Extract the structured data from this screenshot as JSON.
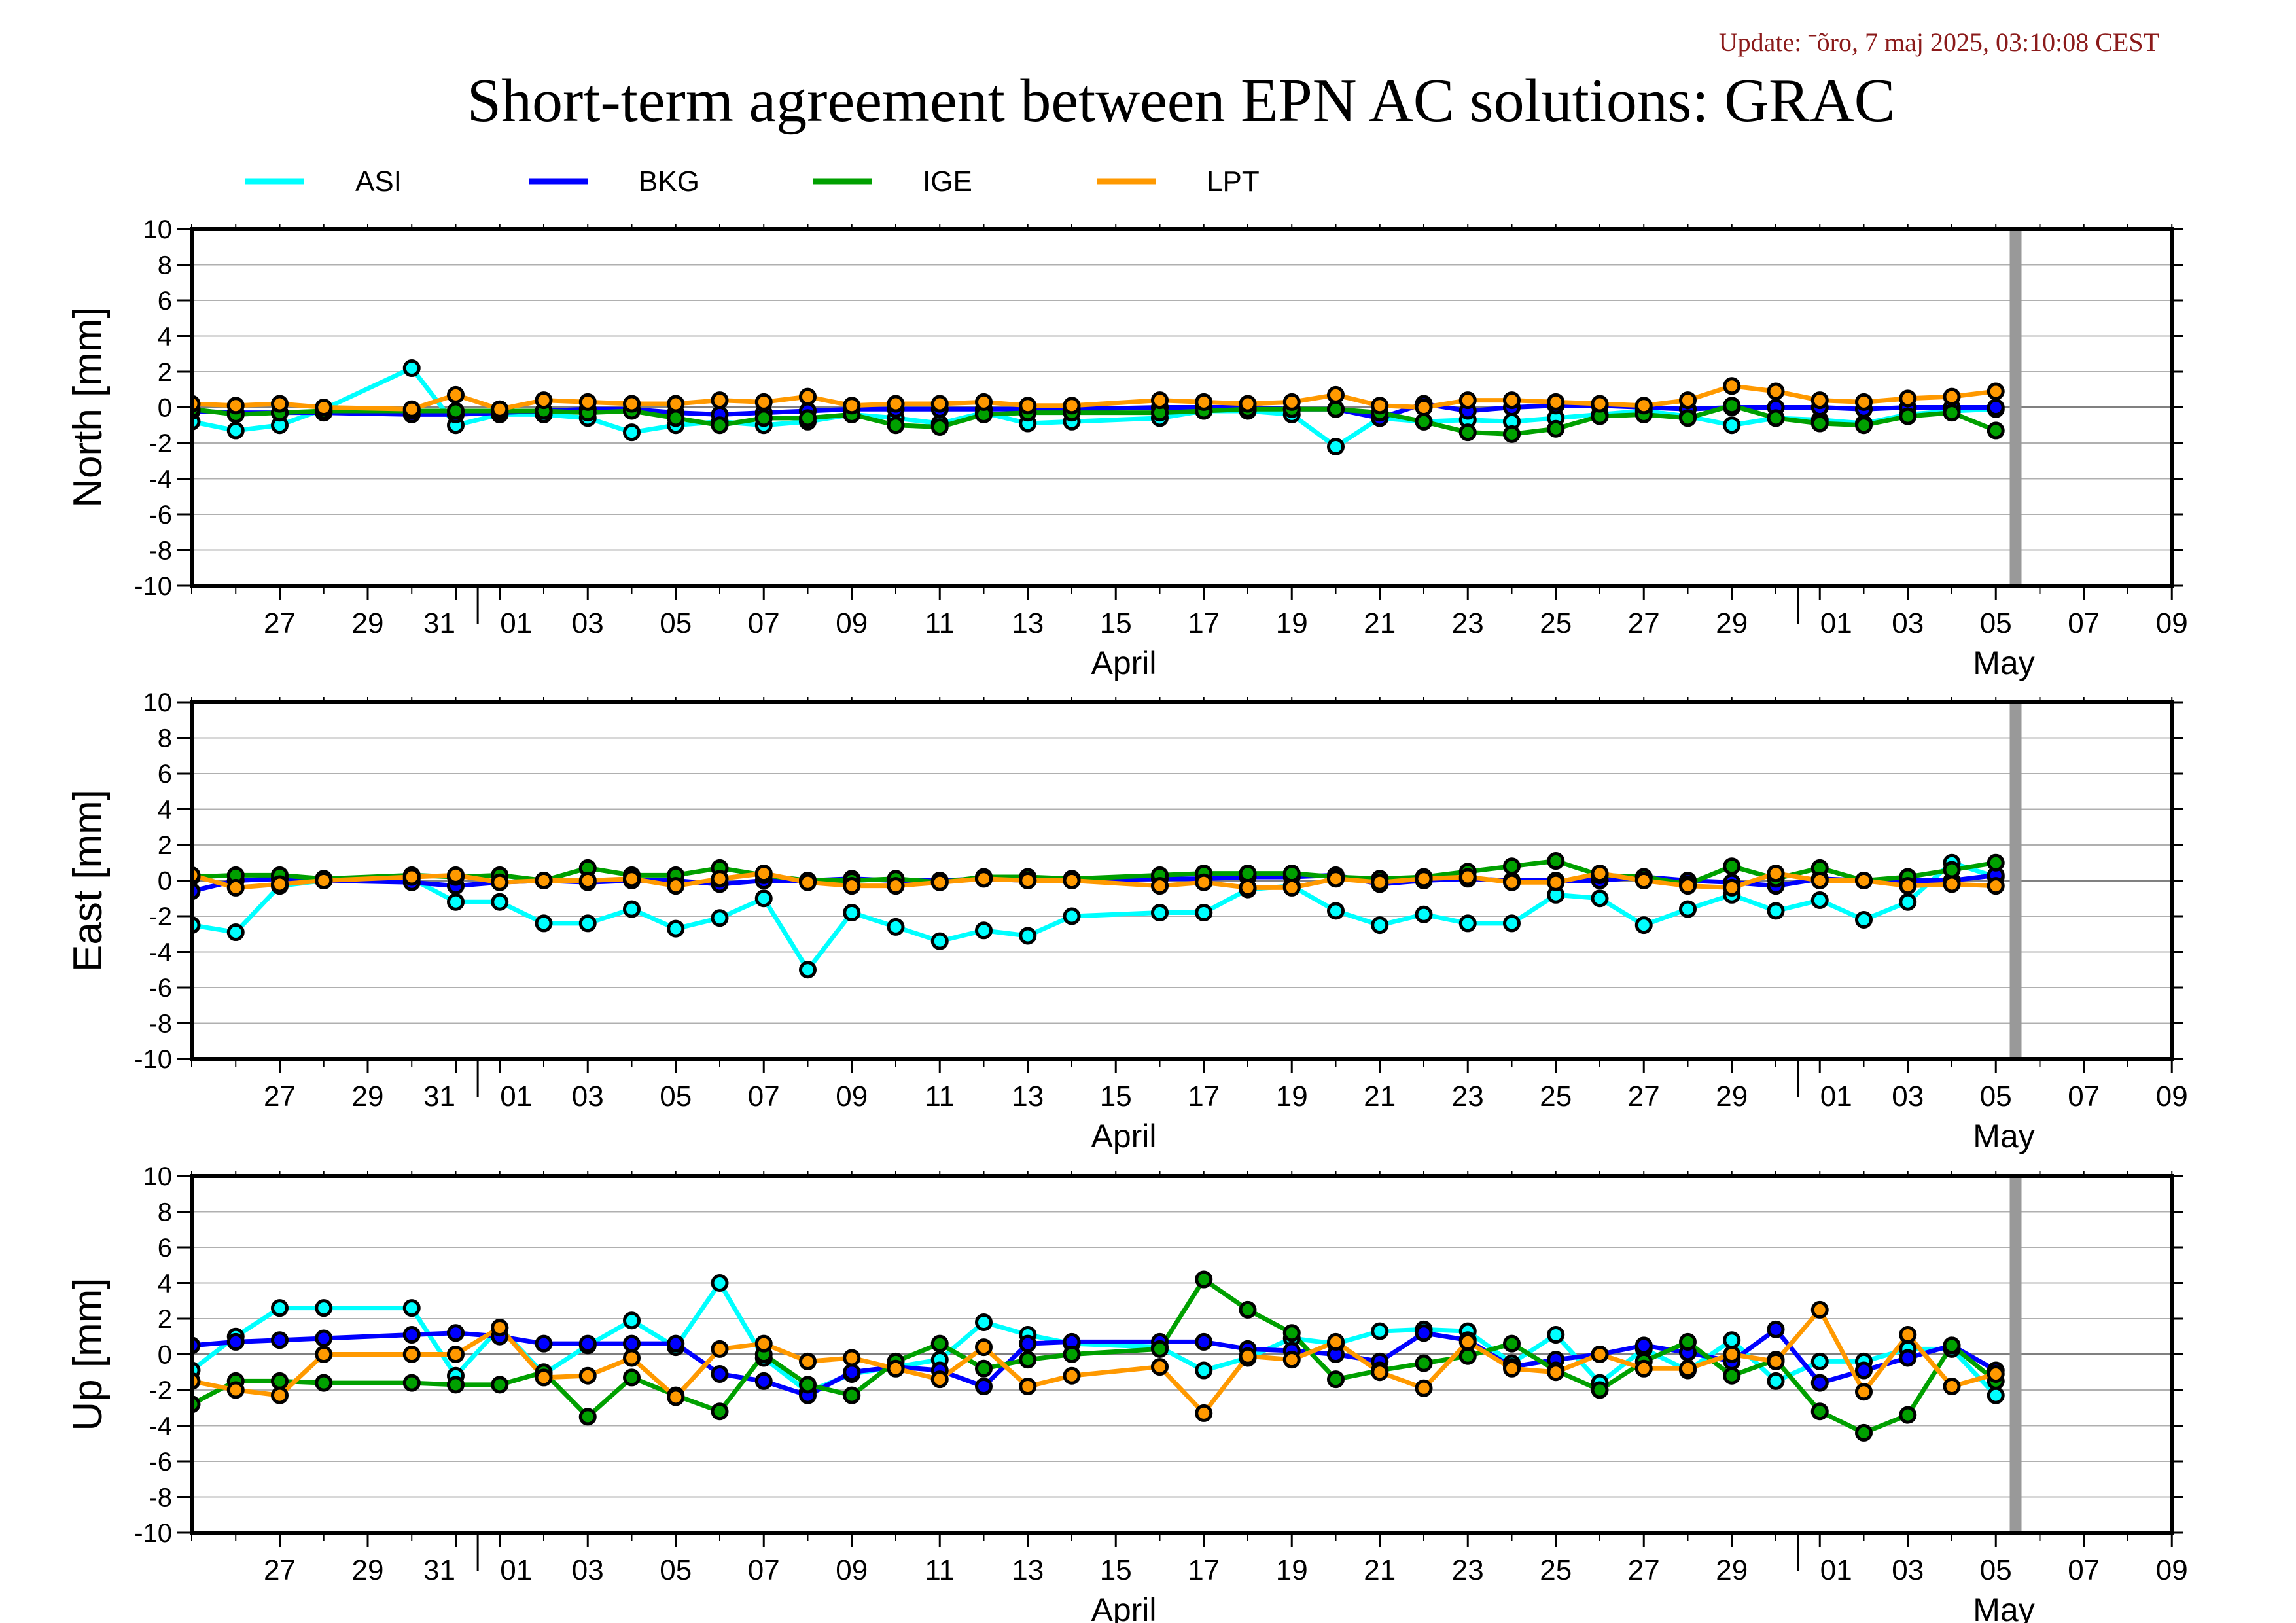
{
  "update_text": "Update: ˉõro, 7 maj 2025, 03:10:08 CEST",
  "title": "Short-term agreement between EPN AC solutions: GRAC",
  "legend": [
    {
      "name": "ASI",
      "color": "#00ffff"
    },
    {
      "name": "BKG",
      "color": "#0000ff"
    },
    {
      "name": "IGE",
      "color": "#00a000"
    },
    {
      "name": "LPT",
      "color": "#ff9900"
    }
  ],
  "colors": {
    "vline": "#999999",
    "grid": "#b0b0b0",
    "marker_edge": "#000000"
  },
  "chart_data": {
    "type": "line",
    "x_unit": "day (2025)",
    "x_range": [
      "2025-03-25",
      "2025-05-10"
    ],
    "x_ticks": [
      "27",
      "29",
      "31",
      "01",
      "03",
      "05",
      "07",
      "09",
      "11",
      "13",
      "15",
      "17",
      "19",
      "21",
      "23",
      "25",
      "27",
      "29",
      "01",
      "03",
      "05",
      "07",
      "09"
    ],
    "month_labels": [
      "April",
      "May"
    ],
    "vertical_line": "2025-05-05",
    "x_dates": [
      "2025-03-25",
      "2025-03-26",
      "2025-03-27",
      "2025-03-28",
      "2025-03-30",
      "2025-03-31",
      "2025-04-01",
      "2025-04-02",
      "2025-04-03",
      "2025-04-04",
      "2025-04-05",
      "2025-04-06",
      "2025-04-07",
      "2025-04-08",
      "2025-04-09",
      "2025-04-10",
      "2025-04-11",
      "2025-04-12",
      "2025-04-13",
      "2025-04-14",
      "2025-04-16",
      "2025-04-17",
      "2025-04-18",
      "2025-04-19",
      "2025-04-20",
      "2025-04-21",
      "2025-04-22",
      "2025-04-23",
      "2025-04-24",
      "2025-04-25",
      "2025-04-26",
      "2025-04-27",
      "2025-04-28",
      "2025-04-29",
      "2025-04-30",
      "2025-05-01",
      "2025-05-02",
      "2025-05-03",
      "2025-05-04",
      "2025-05-05"
    ],
    "panels": [
      {
        "ylabel": "North [mm]",
        "ylim": [
          -10,
          10
        ],
        "y_ticks": [
          "10",
          "8",
          "6",
          "4",
          "2",
          "0",
          "-2",
          "-4",
          "-6",
          "-8",
          "-10"
        ],
        "series": [
          {
            "name": "ASI",
            "values": [
              -0.8,
              -1.3,
              -1.0,
              -0.1,
              2.2,
              -1.0,
              -0.4,
              -0.4,
              -0.6,
              -1.4,
              -1.0,
              -0.8,
              -1.0,
              -0.8,
              -0.4,
              -0.6,
              -0.9,
              -0.3,
              -0.9,
              -0.8,
              -0.6,
              -0.2,
              -0.2,
              -0.4,
              -2.2,
              -0.6,
              -0.8,
              -0.7,
              -0.8,
              -0.6,
              -0.4,
              -0.2,
              -0.5,
              -1.0,
              -0.6,
              -0.7,
              -0.9,
              -0.4,
              -0.2,
              -0.1
            ]
          },
          {
            "name": "BKG",
            "values": [
              -0.2,
              -0.3,
              -0.3,
              -0.3,
              -0.4,
              -0.4,
              -0.3,
              -0.2,
              -0.1,
              -0.1,
              -0.3,
              -0.4,
              -0.3,
              -0.2,
              -0.1,
              -0.1,
              -0.1,
              -0.1,
              -0.1,
              -0.1,
              0.0,
              0.0,
              0.0,
              -0.1,
              -0.1,
              -0.6,
              0.2,
              -0.2,
              0.0,
              0.1,
              0.1,
              0.0,
              -0.1,
              0.0,
              0.0,
              0.0,
              -0.1,
              0.0,
              0.0,
              0.0
            ]
          },
          {
            "name": "IGE",
            "values": [
              -0.1,
              -0.4,
              -0.3,
              -0.2,
              -0.2,
              -0.2,
              -0.2,
              -0.2,
              -0.3,
              -0.2,
              -0.6,
              -1.0,
              -0.6,
              -0.6,
              -0.4,
              -1.0,
              -1.1,
              -0.4,
              -0.3,
              -0.3,
              -0.3,
              -0.2,
              -0.1,
              -0.1,
              -0.1,
              -0.3,
              -0.8,
              -1.4,
              -1.5,
              -1.2,
              -0.5,
              -0.4,
              -0.6,
              0.1,
              -0.6,
              -0.9,
              -1.0,
              -0.5,
              -0.3,
              -1.3
            ]
          },
          {
            "name": "LPT",
            "values": [
              0.2,
              0.1,
              0.2,
              0.0,
              -0.1,
              0.7,
              -0.1,
              0.4,
              0.3,
              0.2,
              0.2,
              0.4,
              0.3,
              0.6,
              0.1,
              0.2,
              0.2,
              0.3,
              0.1,
              0.1,
              0.4,
              0.3,
              0.2,
              0.3,
              0.7,
              0.1,
              0.0,
              0.4,
              0.4,
              0.3,
              0.2,
              0.1,
              0.4,
              1.2,
              0.9,
              0.4,
              0.3,
              0.5,
              0.6,
              0.9
            ]
          }
        ]
      },
      {
        "ylabel": "East [mm]",
        "ylim": [
          -10,
          10
        ],
        "y_ticks": [
          "10",
          "8",
          "6",
          "4",
          "2",
          "0",
          "-2",
          "-4",
          "-6",
          "-8",
          "-10"
        ],
        "series": [
          {
            "name": "ASI",
            "values": [
              -2.5,
              -2.9,
              -0.3,
              0.0,
              0.1,
              -1.2,
              -1.2,
              -2.4,
              -2.4,
              -1.6,
              -2.7,
              -2.1,
              -1.0,
              -5.0,
              -1.8,
              -2.6,
              -3.4,
              -2.8,
              -3.1,
              -2.0,
              -1.8,
              -1.8,
              -0.5,
              -0.3,
              -1.7,
              -2.5,
              -1.9,
              -2.4,
              -2.4,
              -0.8,
              -1.0,
              -2.5,
              -1.6,
              -0.8,
              -1.7,
              -1.1,
              -2.2,
              -1.2,
              1.0,
              0.2
            ]
          },
          {
            "name": "BKG",
            "values": [
              -0.6,
              0.0,
              0.1,
              0.0,
              -0.1,
              -0.3,
              -0.1,
              0.0,
              -0.1,
              0.0,
              0.0,
              -0.2,
              0.0,
              0.0,
              0.1,
              0.0,
              0.0,
              0.1,
              0.0,
              0.0,
              0.1,
              0.1,
              0.2,
              0.2,
              0.3,
              -0.2,
              0.0,
              0.1,
              0.0,
              0.0,
              0.0,
              0.2,
              0.0,
              -0.1,
              -0.3,
              0.1,
              0.0,
              0.0,
              0.0,
              0.3
            ]
          },
          {
            "name": "IGE",
            "values": [
              0.2,
              0.3,
              0.3,
              0.1,
              0.3,
              0.2,
              0.3,
              0.0,
              0.7,
              0.3,
              0.3,
              0.7,
              0.3,
              0.0,
              0.0,
              0.1,
              -0.1,
              0.2,
              0.2,
              0.1,
              0.3,
              0.4,
              0.4,
              0.4,
              0.2,
              0.1,
              0.2,
              0.5,
              0.8,
              1.1,
              0.3,
              0.2,
              -0.2,
              0.8,
              0.1,
              0.7,
              0.0,
              0.2,
              0.6,
              1.0
            ]
          },
          {
            "name": "LPT",
            "values": [
              0.3,
              -0.4,
              -0.2,
              0.0,
              0.2,
              0.3,
              -0.1,
              0.0,
              0.0,
              0.1,
              -0.3,
              0.1,
              0.4,
              -0.1,
              -0.3,
              -0.3,
              -0.1,
              0.1,
              0.0,
              0.0,
              -0.3,
              -0.1,
              -0.4,
              -0.4,
              0.1,
              -0.1,
              0.1,
              0.2,
              -0.1,
              -0.1,
              0.4,
              0.0,
              -0.3,
              -0.4,
              0.4,
              0.0,
              0.0,
              -0.3,
              -0.2,
              -0.3
            ]
          }
        ]
      },
      {
        "ylabel": "Up [mm]",
        "ylim": [
          -10,
          10
        ],
        "y_ticks": [
          "10",
          "8",
          "6",
          "4",
          "2",
          "0",
          "-2",
          "-4",
          "-6",
          "-8",
          "-10"
        ],
        "series": [
          {
            "name": "ASI",
            "values": [
              -0.9,
              1.0,
              2.6,
              2.6,
              2.6,
              -1.2,
              1.5,
              -1.1,
              0.5,
              1.9,
              0.4,
              4.0,
              -0.2,
              -2.1,
              -1.1,
              -0.7,
              -0.3,
              1.8,
              1.1,
              0.6,
              0.4,
              -0.9,
              -0.2,
              0.9,
              0.6,
              1.3,
              1.4,
              1.3,
              -0.5,
              1.1,
              -1.6,
              0.3,
              -0.9,
              0.8,
              -1.5,
              -0.4,
              -0.4,
              0.3,
              0.3,
              -2.3
            ]
          },
          {
            "name": "BKG",
            "values": [
              0.5,
              0.7,
              0.8,
              0.9,
              1.1,
              1.2,
              1.0,
              0.6,
              0.6,
              0.6,
              0.6,
              -1.1,
              -1.5,
              -2.3,
              -1.0,
              -0.7,
              -0.9,
              -1.8,
              0.6,
              0.7,
              0.7,
              0.7,
              0.3,
              0.2,
              0.0,
              -0.4,
              1.2,
              0.8,
              -0.7,
              -0.3,
              0.0,
              0.5,
              0.1,
              -0.4,
              1.4,
              -1.6,
              -0.9,
              -0.2,
              0.5,
              -0.9
            ]
          },
          {
            "name": "IGE",
            "values": [
              -2.8,
              -1.5,
              -1.5,
              -1.6,
              -1.6,
              -1.7,
              -1.7,
              -1.0,
              -3.5,
              -1.3,
              -2.3,
              -3.2,
              0.0,
              -1.7,
              -2.3,
              -0.4,
              0.6,
              -0.8,
              -0.3,
              0.0,
              0.3,
              4.2,
              2.5,
              1.2,
              -1.4,
              -0.9,
              -0.5,
              -0.1,
              0.6,
              -0.9,
              -2.0,
              -0.4,
              0.7,
              -1.2,
              -0.3,
              -3.2,
              -4.4,
              -3.4,
              0.5,
              -1.5
            ]
          },
          {
            "name": "LPT",
            "values": [
              -1.5,
              -2.0,
              -2.3,
              0.0,
              0.0,
              0.0,
              1.5,
              -1.3,
              -1.2,
              -0.2,
              -2.4,
              0.3,
              0.6,
              -0.4,
              -0.2,
              -0.8,
              -1.4,
              0.4,
              -1.8,
              -1.2,
              -0.7,
              -3.3,
              -0.1,
              -0.3,
              0.7,
              -1.0,
              -1.9,
              0.7,
              -0.8,
              -1.0,
              0.0,
              -0.8,
              -0.8,
              0.0,
              -0.4,
              2.5,
              -2.1,
              1.1,
              -1.8,
              -1.1
            ]
          }
        ]
      }
    ]
  }
}
